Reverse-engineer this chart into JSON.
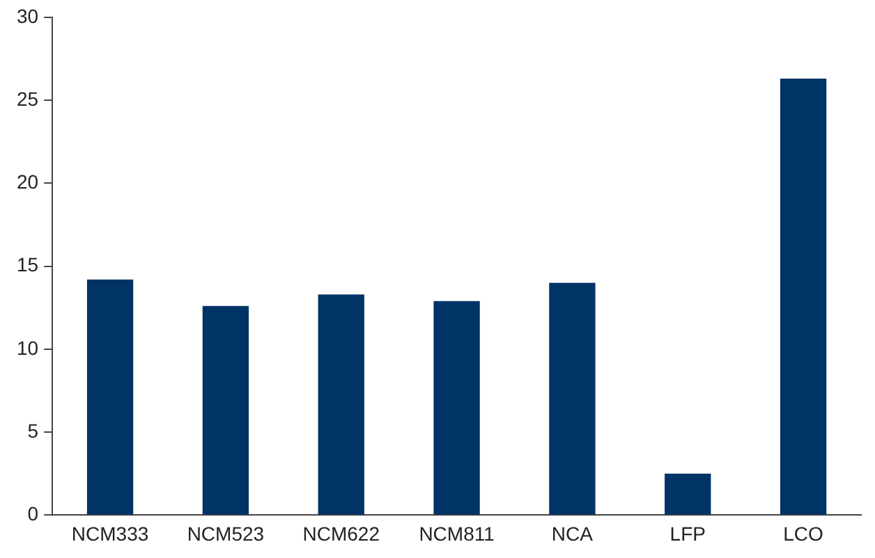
{
  "chart_data": {
    "type": "bar",
    "categories": [
      "NCM333",
      "NCM523",
      "NCM622",
      "NCM811",
      "NCA",
      "LFP",
      "LCO"
    ],
    "values": [
      14.2,
      12.6,
      13.3,
      12.9,
      14.0,
      2.5,
      26.3
    ],
    "color": "#003366",
    "ylim": [
      0,
      30
    ],
    "yticks": [
      0,
      5,
      10,
      15,
      20,
      25,
      30
    ],
    "grid": false,
    "legend": false
  }
}
